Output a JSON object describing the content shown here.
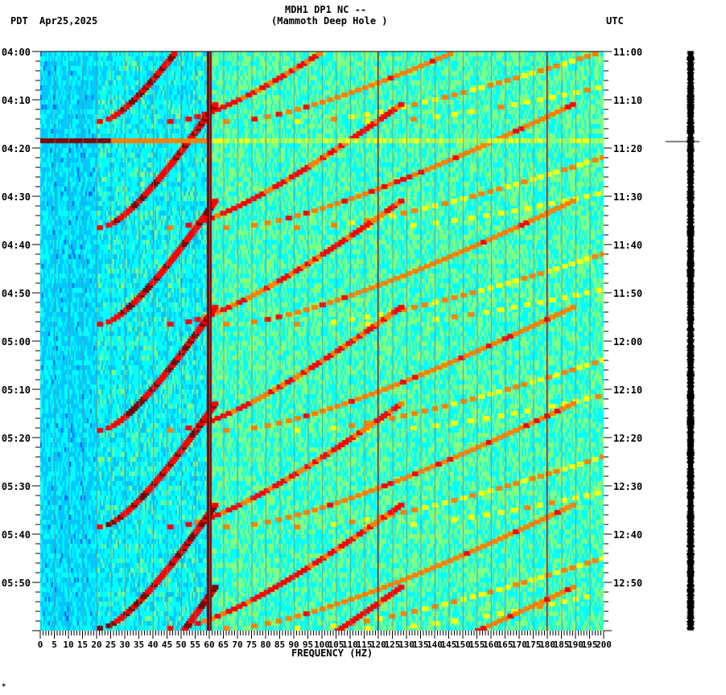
{
  "header": {
    "station": "MDH1 DP1 NC --",
    "site": "(Mammoth Deep Hole )",
    "left_tz": "PDT",
    "date": "Apr25,2025",
    "right_tz": "UTC"
  },
  "footer": {
    "mark": "*"
  },
  "chart_data": {
    "type": "heatmap",
    "title": "MDH1 DP1 NC -- (Mammoth Deep Hole )",
    "subtitle": "Apr25,2025",
    "xlabel": "FREQUENCY (HZ)",
    "ylabel_left": "PDT",
    "ylabel_right": "UTC",
    "xlim": [
      0,
      200
    ],
    "x_ticks": [
      0,
      5,
      10,
      15,
      20,
      25,
      30,
      35,
      40,
      45,
      50,
      55,
      60,
      65,
      70,
      75,
      80,
      85,
      90,
      95,
      100,
      105,
      110,
      115,
      120,
      125,
      130,
      135,
      140,
      145,
      150,
      155,
      160,
      165,
      170,
      175,
      180,
      185,
      190,
      195,
      200
    ],
    "y_ticks_left": [
      "04:00",
      "04:10",
      "04:20",
      "04:30",
      "04:40",
      "04:50",
      "05:00",
      "05:10",
      "05:20",
      "05:30",
      "05:40",
      "05:50"
    ],
    "y_ticks_right": [
      "11:00",
      "11:10",
      "11:20",
      "11:30",
      "11:40",
      "11:50",
      "12:00",
      "12:10",
      "12:20",
      "12:30",
      "12:40",
      "12:50"
    ],
    "time_range_minutes": 120,
    "colormap": [
      "#0000c8",
      "#0064ff",
      "#00c8ff",
      "#00ffff",
      "#80ff80",
      "#ffff00",
      "#ff8000",
      "#ff0000",
      "#800000"
    ],
    "persistent_lines_hz": [
      60,
      120,
      180
    ],
    "broadband_event": {
      "time_pdt": "04:18",
      "freq_range_hz": [
        0,
        200
      ]
    },
    "sweep_arcs": {
      "description": "Repeating arc-shaped harmonic sweeps rising in frequency over ~20 min cycles",
      "cycle_start_minutes": [
        -12,
        10,
        30,
        52,
        72,
        93,
        110
      ],
      "harmonic_start_hz": [
        20,
        45,
        65,
        90,
        115
      ]
    }
  }
}
